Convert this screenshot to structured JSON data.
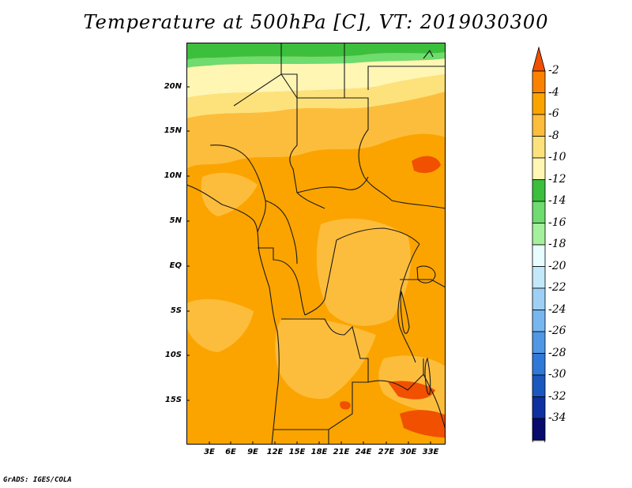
{
  "title": "Temperature at 500hPa [C], VT: 2019030300",
  "credit": "GrADS: IGES/COLA",
  "map": {
    "lat_ticks": [
      "20N",
      "15N",
      "10N",
      "5N",
      "EQ",
      "5S",
      "10S",
      "15S"
    ],
    "lon_ticks": [
      "3E",
      "6E",
      "9E",
      "12E",
      "15E",
      "18E",
      "21E",
      "24E",
      "27E",
      "30E",
      "33E"
    ]
  },
  "colorbar": {
    "labels": [
      "-2",
      "-4",
      "-6",
      "-8",
      "-10",
      "-12",
      "-14",
      "-16",
      "-18",
      "-20",
      "-22",
      "-24",
      "-26",
      "-28",
      "-30",
      "-32",
      "-34"
    ],
    "colors": [
      "#f05000",
      "#fa8200",
      "#fba400",
      "#fdbd3c",
      "#fde27c",
      "#fff6b4",
      "#3cbf3c",
      "#6edc6e",
      "#a4f09c",
      "#e8fdff",
      "#c2e8fa",
      "#9ed0f5",
      "#78b6f0",
      "#5098e6",
      "#2f78d8",
      "#1a58c0",
      "#0e30a0",
      "#080a6e",
      "#dcdcf0"
    ]
  }
}
